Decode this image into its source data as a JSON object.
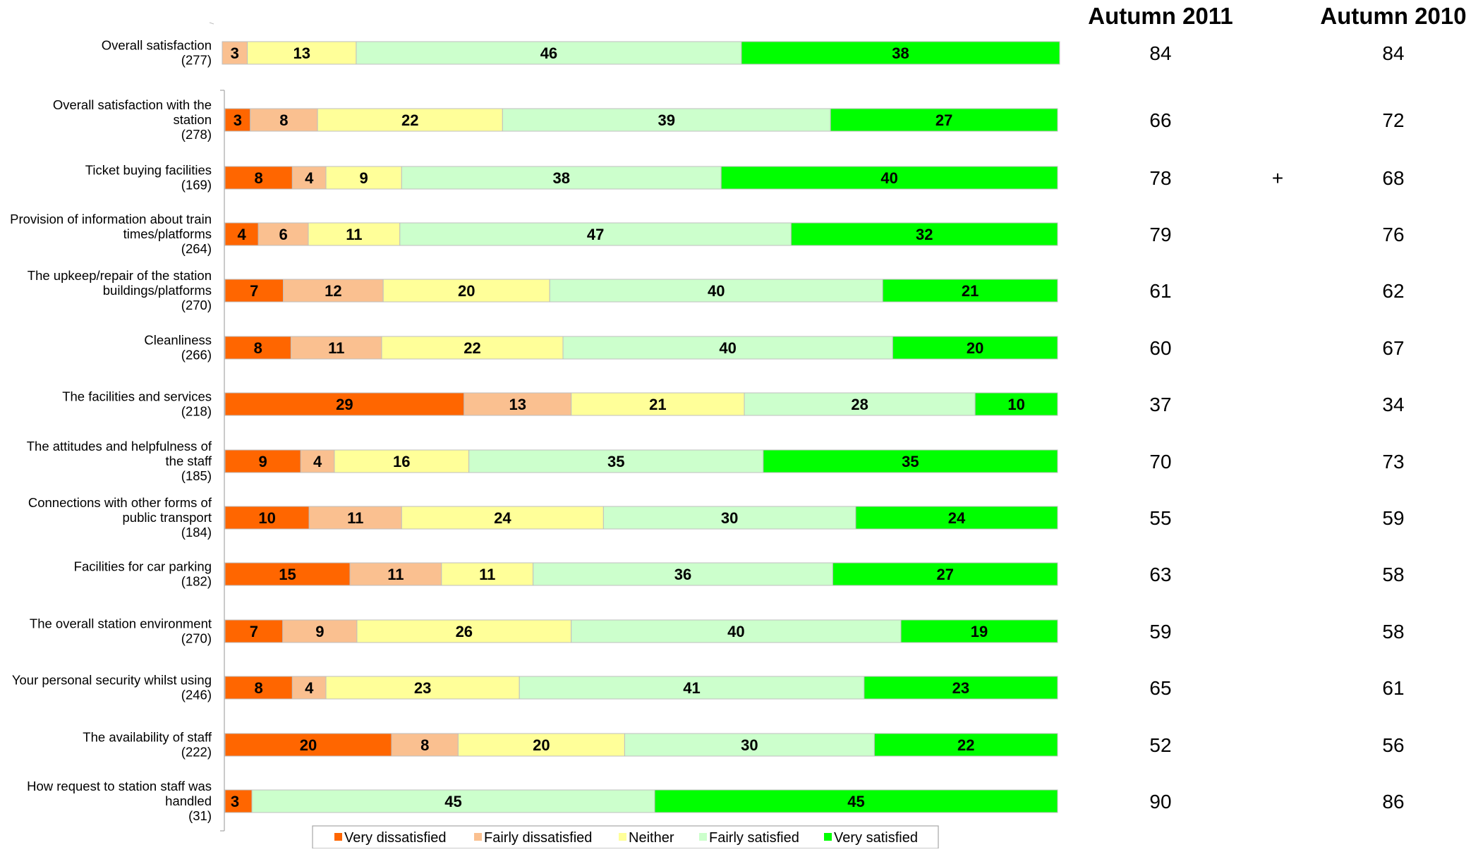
{
  "chart_data": {
    "type": "bar",
    "orientation": "horizontal",
    "stacked": true,
    "grid": false,
    "legend_position": "bottom",
    "column_headers": [
      "Autumn 2011",
      "Autumn 2010"
    ],
    "legend": [
      {
        "name": "Very dissatisfied",
        "color": "#FF6600"
      },
      {
        "name": "Fairly dissatisfied",
        "color": "#FAC090"
      },
      {
        "name": "Neither",
        "color": "#FFFF99"
      },
      {
        "name": "Fairly satisfied",
        "color": "#CCFFCC"
      },
      {
        "name": "Very satisfied",
        "color": "#00FF00"
      }
    ],
    "rows": [
      {
        "label": [
          "Overall satisfaction",
          "(277)"
        ],
        "values": [
          0,
          3,
          13,
          46,
          38
        ],
        "hide_zero_labels": true,
        "autumn_2011": "84",
        "marker": "",
        "autumn_2010": "84"
      },
      {
        "label": [
          "Overall satisfaction  with the",
          "station",
          "(278)"
        ],
        "values": [
          3,
          8,
          22,
          39,
          27
        ],
        "autumn_2011": "66",
        "marker": "",
        "autumn_2010": "72"
      },
      {
        "label": [
          "Ticket buying facilities",
          "(169)"
        ],
        "values": [
          8,
          4,
          9,
          38,
          40
        ],
        "autumn_2011": "78",
        "marker": "+",
        "autumn_2010": "68"
      },
      {
        "label": [
          "Provision of information about train",
          "times/platforms",
          "(264)"
        ],
        "values": [
          4,
          6,
          11,
          47,
          32
        ],
        "autumn_2011": "79",
        "marker": "",
        "autumn_2010": "76"
      },
      {
        "label": [
          "The upkeep/repair of the station",
          "buildings/platforms",
          "(270)"
        ],
        "values": [
          7,
          12,
          20,
          40,
          21
        ],
        "autumn_2011": "61",
        "marker": "",
        "autumn_2010": "62"
      },
      {
        "label": [
          "Cleanliness",
          "(266)"
        ],
        "values": [
          8,
          11,
          22,
          40,
          20
        ],
        "autumn_2011": "60",
        "marker": "",
        "autumn_2010": "67"
      },
      {
        "label": [
          "The facilities and services",
          "(218)"
        ],
        "values": [
          29,
          13,
          21,
          28,
          10
        ],
        "autumn_2011": "37",
        "marker": "",
        "autumn_2010": "34"
      },
      {
        "label": [
          "The attitudes and helpfulness of",
          "the staff",
          "(185)"
        ],
        "values": [
          9,
          4,
          16,
          35,
          35
        ],
        "autumn_2011": "70",
        "marker": "",
        "autumn_2010": "73"
      },
      {
        "label": [
          "Connections with other forms of",
          "public transport",
          "(184)"
        ],
        "values": [
          10,
          11,
          24,
          30,
          24
        ],
        "autumn_2011": "55",
        "marker": "",
        "autumn_2010": "59"
      },
      {
        "label": [
          "Facilities for car parking",
          "(182)"
        ],
        "values": [
          15,
          11,
          11,
          36,
          27
        ],
        "autumn_2011": "63",
        "marker": "",
        "autumn_2010": "58"
      },
      {
        "label": [
          "The overall station environment",
          "(270)"
        ],
        "values": [
          7,
          9,
          26,
          40,
          19
        ],
        "autumn_2011": "59",
        "marker": "",
        "autumn_2010": "58"
      },
      {
        "label": [
          "Your personal security whilst using",
          "(246)"
        ],
        "values": [
          8,
          4,
          23,
          41,
          23
        ],
        "autumn_2011": "65",
        "marker": "",
        "autumn_2010": "61"
      },
      {
        "label": [
          "The availability of staff",
          "(222)"
        ],
        "values": [
          20,
          8,
          20,
          30,
          22
        ],
        "autumn_2011": "52",
        "marker": "",
        "autumn_2010": "56"
      },
      {
        "label": [
          "How request to station staff was",
          "handled",
          "(31)"
        ],
        "values": [
          3,
          0,
          0,
          45,
          45
        ],
        "segment_labels": [
          "3",
          "0",
          "",
          "45",
          "45"
        ],
        "autumn_2011": "90",
        "marker": "",
        "autumn_2010": "86"
      }
    ]
  }
}
